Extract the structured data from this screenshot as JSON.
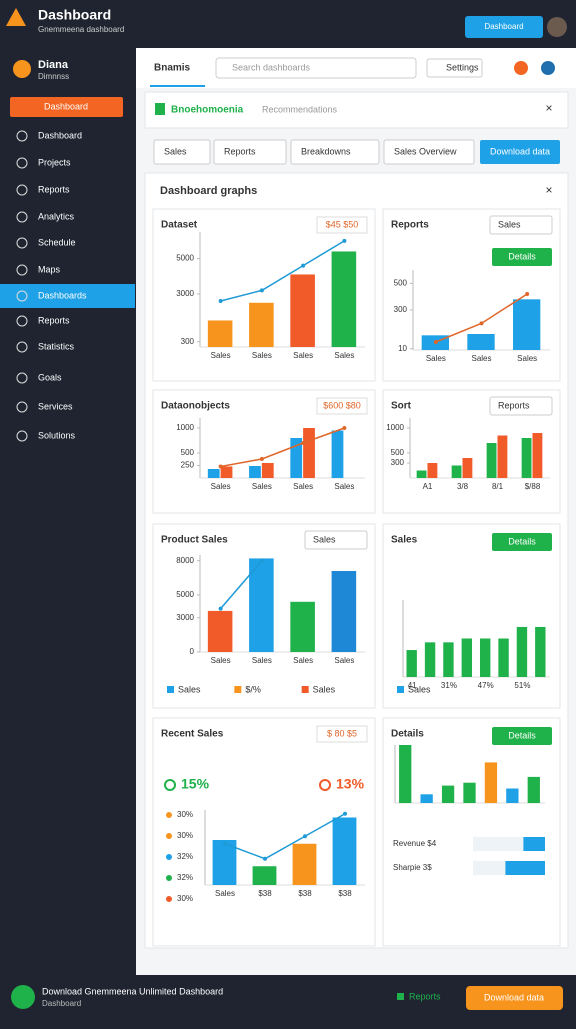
{
  "app": {
    "title": "Dashboard",
    "subtitle": "Gnemmeena dashboard",
    "top_button": "Dashboard"
  },
  "sidebar": {
    "user": "Diana",
    "user_sub": "Dimnnss",
    "active_button": "Dashboard",
    "items": [
      "Dashboard",
      "Projects",
      "Reports",
      "Analytics",
      "Schedule",
      "Maps",
      "Dashboards",
      "Reports",
      "Statistics",
      "Goals",
      "Services",
      "Solutions"
    ],
    "active_index": 6
  },
  "header": {
    "tab": "Bnamis",
    "search": "Search dashboards",
    "menu": "Settings"
  },
  "banner": {
    "title": "Bnoehomoenia",
    "sub": "Recommendations"
  },
  "filters": [
    "Sales",
    "Reports",
    "Breakdowns",
    "Sales Overview"
  ],
  "filter_button": "Download data",
  "section_title": "Dashboard graphs",
  "charts": [
    {
      "title": "Dataset",
      "badge": "$45 $50",
      "type": "bar",
      "categories": [
        "Sales",
        "Sales",
        "Sales",
        "Sales"
      ],
      "ylim": [
        0,
        6500
      ],
      "yticks": [
        300,
        3000,
        5000
      ],
      "series": [
        {
          "values": [
            1500,
            2500,
            4100,
            5400
          ],
          "colors": [
            "#f7941d",
            "#f7941d",
            "#f15a29",
            "#1fb14a"
          ]
        },
        {
          "kind": "line",
          "color": "#1e9ad6",
          "values": [
            2600,
            3200,
            4600,
            6000
          ]
        }
      ]
    },
    {
      "title": "Reports",
      "dropdown": "Sales",
      "button": "Details",
      "type": "bar",
      "categories": [
        "Sales",
        "Sales",
        "Sales"
      ],
      "ylim": [
        0,
        600
      ],
      "yticks": [
        10,
        300,
        500
      ],
      "series": [
        {
          "color": "#1ea1e6",
          "values": [
            110,
            120,
            380
          ]
        },
        {
          "kind": "line",
          "color": "#e0662a",
          "values": [
            60,
            200,
            420
          ]
        }
      ]
    },
    {
      "title": "Dataonobjects",
      "badge": "$600 $80",
      "type": "bar",
      "categories": [
        "Sales",
        "Sales",
        "Sales",
        "Sales"
      ],
      "ylim": [
        0,
        1200
      ],
      "yticks": [
        250,
        500,
        1000
      ],
      "series": [
        {
          "color": "#1ea1e6",
          "values": [
            180,
            240,
            800,
            950
          ]
        },
        {
          "color": "#f15a29",
          "values": [
            230,
            300,
            1000,
            null
          ]
        },
        {
          "kind": "line",
          "color": "#e0662a",
          "values": [
            230,
            380,
            700,
            1000
          ]
        }
      ]
    },
    {
      "title": "Sort",
      "dropdown": "Reports",
      "type": "bar",
      "categories": [
        "A1",
        "3/8",
        "8/1",
        "$/88"
      ],
      "ylim": [
        0,
        1200
      ],
      "yticks": [
        300,
        500,
        1000
      ],
      "series": [
        {
          "color": "#1fb14a",
          "values": [
            150,
            250,
            700,
            800
          ]
        },
        {
          "color": "#f15a29",
          "values": [
            300,
            400,
            850,
            900
          ]
        }
      ]
    },
    {
      "title": "Product Sales",
      "dropdown": "Sales",
      "type": "bar",
      "categories": [
        "Sales",
        "Sales",
        "Sales",
        "Sales"
      ],
      "ylim": [
        0,
        8500
      ],
      "yticks": [
        0,
        3000,
        5000,
        8000
      ],
      "series": [
        {
          "values": [
            3600,
            8200,
            4400,
            7100
          ],
          "colors": [
            "#f15a29",
            "#1ea1e6",
            "#1fb14a",
            "#1e88d6"
          ]
        },
        {
          "kind": "line",
          "color": "#1e9ad6",
          "values": [
            3800,
            8000,
            null,
            null
          ]
        }
      ],
      "legend": [
        {
          "name": "Sales",
          "color": "#1ea1e6"
        },
        {
          "name": "$/%",
          "color": "#f7941d"
        },
        {
          "name": "Sales",
          "color": "#f15a29"
        }
      ]
    },
    {
      "title": "Sales",
      "button": "Details",
      "type": "bar",
      "categories": [
        "41",
        null,
        "31%",
        null,
        "47%",
        null,
        "51%",
        null
      ],
      "ylim": [
        0,
        100
      ],
      "series": [
        {
          "color": "#1fb14a",
          "values": [
            35,
            45,
            45,
            50,
            50,
            50,
            65,
            65
          ]
        }
      ],
      "legend": [
        {
          "name": "Sales",
          "color": "#1ea1e6"
        }
      ]
    },
    {
      "title": "Recent Sales",
      "badge": "$ 80 $5",
      "type": "bar",
      "categories": [
        "Sales",
        "$38",
        "$38",
        "$38"
      ],
      "ylim": [
        0,
        100
      ],
      "series": [
        {
          "values": [
            60,
            25,
            55,
            90
          ],
          "colors": [
            "#1ea1e6",
            "#1fb14a",
            "#f7941d",
            "#1ea1e6"
          ]
        },
        {
          "kind": "line",
          "color": "#1e9ad6",
          "values": [
            55,
            35,
            65,
            95
          ]
        }
      ],
      "kpis": [
        {
          "label": "15%",
          "color": "#1fb14a"
        },
        {
          "label": "13%",
          "color": "#f15a29"
        }
      ],
      "list": [
        "30%",
        "30%",
        "32%",
        "32%",
        "30%"
      ]
    },
    {
      "title": "Details",
      "button": "Details",
      "type": "bar",
      "categories": [
        null,
        null,
        null,
        null,
        null,
        null,
        null
      ],
      "ylim": [
        0,
        100
      ],
      "series": [
        {
          "values": [
            100,
            15,
            30,
            35,
            70,
            25,
            45
          ],
          "colors": [
            "#1fb14a",
            "#1ea1e6",
            "#1fb14a",
            "#1fb14a",
            "#f7941d",
            "#1ea1e6",
            "#1fb14a"
          ]
        }
      ],
      "progress": [
        {
          "label": "Revenue $4",
          "value": 30
        },
        {
          "label": "Sharpie 3$",
          "value": 55
        }
      ]
    }
  ],
  "footer": {
    "text": "Download Gnemmeena Unlimited Dashboard",
    "sub": "Dashboard",
    "link": "Reports",
    "button": "Download data"
  }
}
